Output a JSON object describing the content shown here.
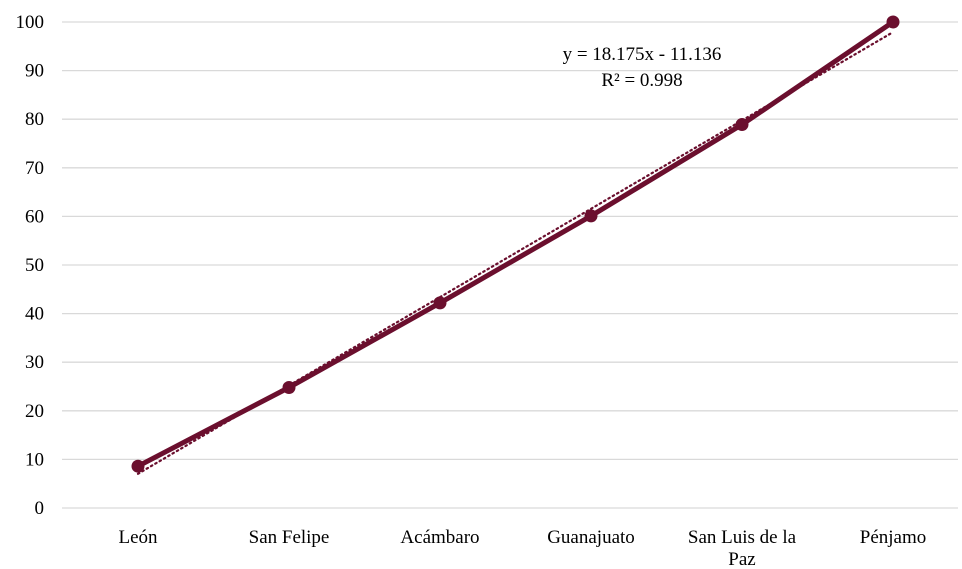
{
  "chart_data": {
    "type": "line",
    "categories": [
      "León",
      "San Felipe",
      "Acámbaro",
      "Guanajuato",
      "San Luis de la Paz",
      "Pénjamo"
    ],
    "series": [
      {
        "values": [
          8.6,
          24.8,
          42.2,
          60.1,
          78.9,
          100.0
        ],
        "color": "#6b0f2e"
      }
    ],
    "trendline": {
      "type": "linear",
      "slope": 18.175,
      "intercept": -11.136,
      "equation": "y = 18.175x - 11.136",
      "r_squared": "R² = 0.998",
      "color": "#6b0f2e",
      "style": "dotted"
    },
    "ylim": [
      0,
      100
    ],
    "yticks": [
      0,
      10,
      20,
      30,
      40,
      50,
      60,
      70,
      80,
      90,
      100
    ],
    "grid": true,
    "legend": "none",
    "gridline_color": "#d9d9d9"
  }
}
